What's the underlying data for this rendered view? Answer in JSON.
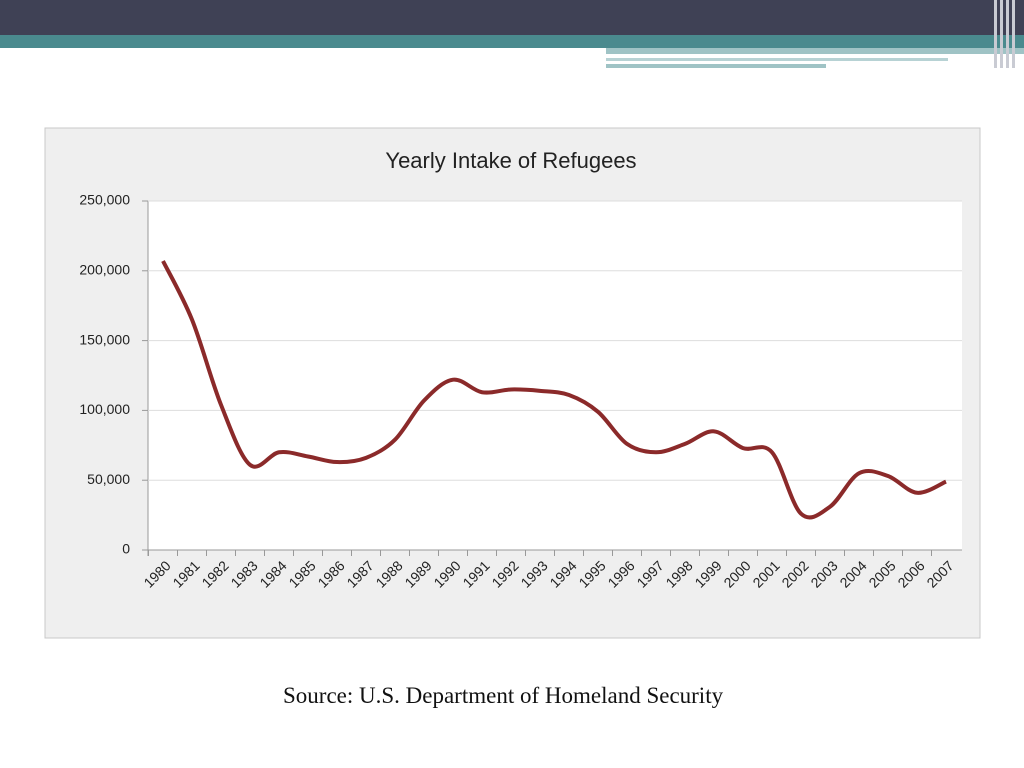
{
  "chart_data": {
    "type": "line",
    "title": "Yearly Intake of Refugees",
    "categories": [
      "1980",
      "1981",
      "1982",
      "1983",
      "1984",
      "1985",
      "1986",
      "1987",
      "1988",
      "1989",
      "1990",
      "1991",
      "1992",
      "1993",
      "1994",
      "1995",
      "1996",
      "1997",
      "1998",
      "1999",
      "2000",
      "2001",
      "2002",
      "2003",
      "2004",
      "2005",
      "2006",
      "2007"
    ],
    "values": [
      207000,
      165000,
      104000,
      61000,
      70000,
      67000,
      63000,
      66000,
      79000,
      107000,
      122000,
      113000,
      115000,
      114000,
      111000,
      99000,
      76000,
      70000,
      76000,
      85000,
      73000,
      70000,
      26000,
      31000,
      55000,
      53000,
      41000,
      49000
    ],
    "color": "#8b2a2a",
    "ylim": [
      0,
      250000
    ],
    "yticks": [
      0,
      {
        "value": 50000,
        "label": "50,000"
      },
      {
        "value": 100000,
        "label": "100,000"
      },
      {
        "value": 150000,
        "label": "150,000"
      },
      {
        "value": 200000,
        "label": "200,000"
      },
      {
        "value": 250000,
        "label": "250,000"
      }
    ],
    "grid": true
  },
  "source": "Source: U.S. Department of Homeland Security"
}
